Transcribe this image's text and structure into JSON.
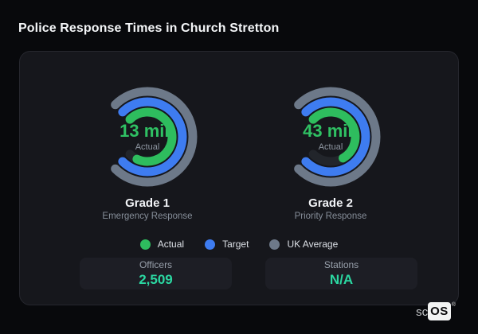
{
  "page": {
    "title": "Police Response Times in Church Stretton"
  },
  "colors": {
    "background": "#08090c",
    "card_bg": "#16171c",
    "card_border": "#26272e",
    "track": "#22252b",
    "actual": "#2ebd5e",
    "target": "#3e7cf0",
    "uk_average": "#6d7989",
    "center_value_text": "#2fc163",
    "stat_value_text": "#2bd8a2"
  },
  "chart_data": [
    {
      "type": "radial-gauge",
      "title": "Grade 1",
      "subtitle": "Emergency Response",
      "center_value": "13 min",
      "center_caption": "Actual",
      "scale": {
        "start_deg": -45,
        "max_sweep_deg": 270
      },
      "rings": [
        {
          "name": "UK Average",
          "color": "#6d7989",
          "sweep_deg": 270
        },
        {
          "name": "Target",
          "color": "#3e7cf0",
          "sweep_deg": 270
        },
        {
          "name": "Actual",
          "color": "#2ebd5e",
          "sweep_deg": 250,
          "value_label": "13 min"
        }
      ]
    },
    {
      "type": "radial-gauge",
      "title": "Grade 2",
      "subtitle": "Priority Response",
      "center_value": "43 min",
      "center_caption": "Actual",
      "scale": {
        "start_deg": -45,
        "max_sweep_deg": 270
      },
      "rings": [
        {
          "name": "UK Average",
          "color": "#6d7989",
          "sweep_deg": 270
        },
        {
          "name": "Target",
          "color": "#3e7cf0",
          "sweep_deg": 270
        },
        {
          "name": "Actual",
          "color": "#2ebd5e",
          "sweep_deg": 195,
          "value_label": "43 min"
        }
      ]
    }
  ],
  "legend": [
    {
      "label": "Actual",
      "color": "#2ebd5e"
    },
    {
      "label": "Target",
      "color": "#3e7cf0"
    },
    {
      "label": "UK Average",
      "color": "#6d7989"
    }
  ],
  "stats": [
    {
      "label": "Officers",
      "value": "2,509"
    },
    {
      "label": "Stations",
      "value": "N/A"
    }
  ],
  "logo": {
    "prefix": "sc",
    "box": "OS",
    "registered": "®"
  }
}
